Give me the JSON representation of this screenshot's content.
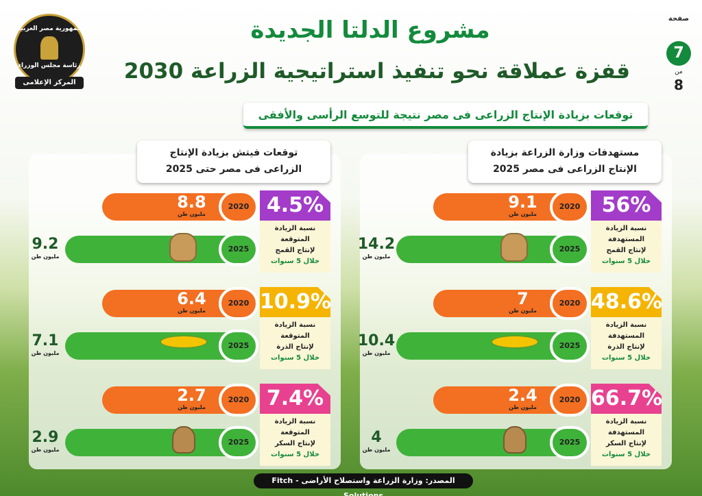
{
  "logo": {
    "line1": "جمهورية مصر العربية",
    "line2": "رئاسة مجلس الوزراء",
    "line3": "المركز الإعلامى"
  },
  "header": {
    "title": "مشروع الدلتا الجديدة",
    "subtitle": "قفزة عملاقة نحو تنفيذ استراتيجية الزراعة 2030"
  },
  "page_indicator": {
    "label": "صفحة",
    "current": "7",
    "of": "من",
    "total": "8"
  },
  "banner": "توقعات بزيادة الإنتاج الزراعى فى مصر نتيجة للتوسع الرأسى والأفقى",
  "unit": "مليون طن",
  "panels": [
    {
      "title": [
        "مستهدفات وزارة الزراعة بزيادة",
        "الإنتاج الزراعى فى مصر 2025"
      ],
      "items": [
        {
          "percent": "56%",
          "label": [
            "نسبة الزيادة",
            "المستهدفة",
            "لإنتاج القمح"
          ],
          "period": "خلال 5 سنوات",
          "year_start": "2020",
          "value_start": "9.1",
          "year_end": "2025",
          "value_end": "14.2"
        },
        {
          "percent": "48.6%",
          "label": [
            "نسبة الزيادة",
            "المستهدفة",
            "لإنتاج الذرة"
          ],
          "period": "خلال 5 سنوات",
          "year_start": "2020",
          "value_start": "7",
          "year_end": "2025",
          "value_end": "10.4"
        },
        {
          "percent": "66.7%",
          "label": [
            "نسبة الزيادة",
            "المستهدفة",
            "لإنتاج السكر"
          ],
          "period": "خلال 5 سنوات",
          "year_start": "2020",
          "value_start": "2.4",
          "year_end": "2025",
          "value_end": "4"
        }
      ]
    },
    {
      "title": [
        "توقعات فيتش بزيادة الإنتاج",
        "الزراعى فى مصر حتى 2025"
      ],
      "items": [
        {
          "percent": "4.5%",
          "label": [
            "نسبة الزيادة",
            "المتوقعة",
            "لإنتاج القمح"
          ],
          "period": "خلال 5 سنوات",
          "year_start": "2020",
          "value_start": "8.8",
          "year_end": "2025",
          "value_end": "9.2"
        },
        {
          "percent": "10.9%",
          "label": [
            "نسبة الزيادة",
            "المتوقعة",
            "لإنتاج الذرة"
          ],
          "period": "خلال 5 سنوات",
          "year_start": "2020",
          "value_start": "6.4",
          "year_end": "2025",
          "value_end": "7.1"
        },
        {
          "percent": "7.4%",
          "label": [
            "نسبة الزيادة",
            "المتوقعة",
            "لإنتاج السكر"
          ],
          "period": "خلال 5 سنوات",
          "year_start": "2020",
          "value_start": "2.7",
          "year_end": "2025",
          "value_end": "2.9"
        }
      ]
    }
  ],
  "source": "المصدر: وزارة الزراعة واستصلاح الأراضى - Fitch Solutions"
}
